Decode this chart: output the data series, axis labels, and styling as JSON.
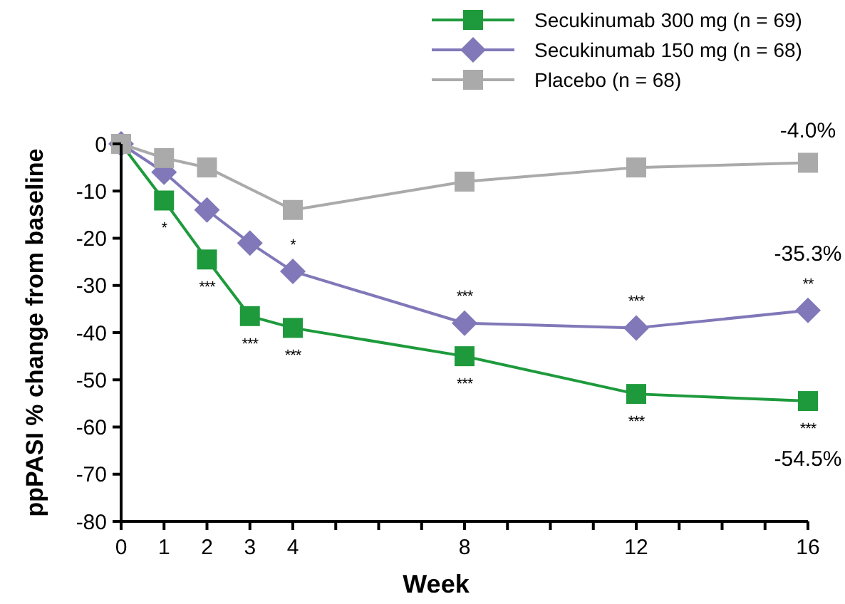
{
  "chart_data": {
    "type": "line",
    "xlabel": "Week",
    "ylabel": "ppPASI % change from baseline",
    "x": [
      0,
      1,
      2,
      3,
      4,
      8,
      12,
      16
    ],
    "series": [
      {
        "name": "Secukinumab 300 mg (n = 69)",
        "color": "#1e9a3c",
        "marker": "square",
        "values": [
          0,
          -12,
          -24.5,
          -36.5,
          -39,
          -45,
          -53,
          -54.5
        ]
      },
      {
        "name": "Secukinumab 150 mg (n = 68)",
        "color": "#8078b8",
        "marker": "diamond",
        "values": [
          0,
          -6,
          -14,
          -21,
          -27,
          -38,
          -39,
          -35.3
        ]
      },
      {
        "name": "Placebo (n = 68)",
        "color": "#aaaaaa",
        "marker": "square",
        "x": [
          0,
          1,
          2,
          4,
          8,
          12,
          16
        ],
        "values": [
          0,
          -3,
          -5,
          -14,
          -8,
          -5,
          -4
        ]
      }
    ],
    "xlim": [
      0,
      16
    ],
    "xticks": [
      0,
      1,
      2,
      3,
      4,
      {
        "value": 5,
        "label": null
      },
      {
        "value": 6,
        "label": null
      },
      {
        "value": 7,
        "label": null
      },
      8,
      {
        "value": 9,
        "label": null
      },
      {
        "value": 10,
        "label": null
      },
      {
        "value": 11,
        "label": null
      },
      12,
      {
        "value": 13,
        "label": null
      },
      {
        "value": 14,
        "label": null
      },
      {
        "value": 15,
        "label": null
      },
      16
    ],
    "ylim": [
      -80,
      0
    ],
    "yticks": [
      -80,
      -70,
      -60,
      -50,
      -40,
      -30,
      -20,
      -10,
      0
    ],
    "legend": "top right",
    "grid": false,
    "line_style": "solid",
    "annotations": [
      {
        "text": "-4.0%",
        "x": 16,
        "y": -4
      },
      {
        "text": "**",
        "x": 16,
        "y": -35.3
      },
      {
        "text": "-35.3%",
        "x": 16,
        "y": -35.3
      },
      {
        "text": "***",
        "x": 16,
        "y": -54.5
      },
      {
        "text": "-54.5%",
        "x": 16,
        "y": -54.5
      },
      {
        "text": "*",
        "x": 1,
        "y": -12
      },
      {
        "text": "***",
        "x": 2,
        "y": -24.5
      },
      {
        "text": "***",
        "x": 3,
        "y": -36.5
      },
      {
        "text": "***",
        "x": 4,
        "y": -39
      },
      {
        "text": "*",
        "x": 4,
        "y": -27
      },
      {
        "text": "***",
        "x": 8,
        "y": -38
      },
      {
        "text": "***",
        "x": 8,
        "y": -45
      },
      {
        "text": "***",
        "x": 12,
        "y": -39
      },
      {
        "text": "***",
        "x": 12,
        "y": -53
      }
    ]
  }
}
